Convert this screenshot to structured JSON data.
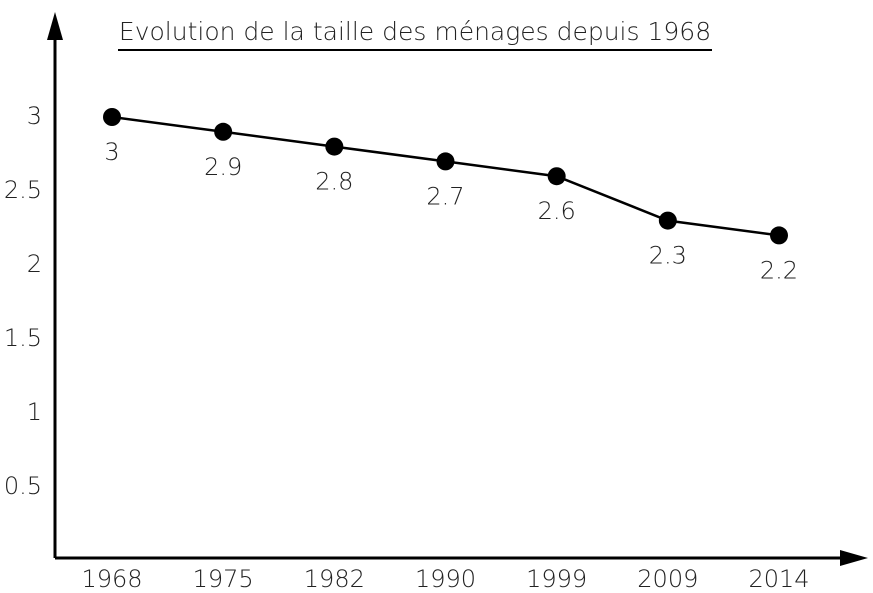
{
  "chart_data": {
    "type": "line",
    "title": "Evolution de la taille des ménages depuis 1968",
    "categories": [
      "1968",
      "1975",
      "1982",
      "1990",
      "1999",
      "2009",
      "2014"
    ],
    "series": [
      {
        "name": null,
        "color": "#000000",
        "values": [
          3,
          2.9,
          2.8,
          2.7,
          2.6,
          2.3,
          2.2
        ]
      }
    ],
    "ylim": [
      0,
      3.5
    ],
    "yticks": [
      0.5,
      1,
      1.5,
      2,
      2.5,
      3
    ],
    "grid": false
  }
}
